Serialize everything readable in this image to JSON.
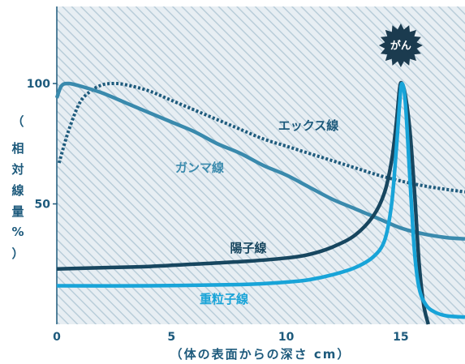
{
  "chart_data": {
    "type": "line",
    "title": "",
    "xlabel": "（体の表面からの深さ cm）",
    "ylabel_chars": [
      "（",
      "相",
      "対",
      "線",
      "量",
      "%",
      "）"
    ],
    "xlim": [
      0,
      17.8
    ],
    "ylim": [
      0,
      132
    ],
    "x_ticks": [
      0,
      5,
      10,
      15
    ],
    "x_tick_labels": [
      "0",
      "5",
      "10",
      "15"
    ],
    "y_ticks": [
      50,
      100
    ],
    "y_tick_labels": [
      "50",
      "100"
    ],
    "background": "hatched",
    "annotation": {
      "text": "がん",
      "x": 15,
      "color": "#1b3b4f"
    },
    "series": [
      {
        "name": "エックス線",
        "color": "#1d5a7c",
        "style": "dotted",
        "points": [
          [
            0.1,
            67
          ],
          [
            0.5,
            80
          ],
          [
            1.0,
            92
          ],
          [
            1.5,
            97
          ],
          [
            2.0,
            99.5
          ],
          [
            2.5,
            100
          ],
          [
            3.0,
            99.5
          ],
          [
            4.0,
            97
          ],
          [
            5.0,
            93
          ],
          [
            6.0,
            89
          ],
          [
            7.0,
            85
          ],
          [
            8.0,
            81
          ],
          [
            9.0,
            77
          ],
          [
            10.0,
            74
          ],
          [
            11.0,
            71
          ],
          [
            12.0,
            68
          ],
          [
            13.0,
            65
          ],
          [
            14.0,
            62
          ],
          [
            15.0,
            59.5
          ],
          [
            16.0,
            57.5
          ],
          [
            17.0,
            56
          ],
          [
            17.8,
            55
          ]
        ]
      },
      {
        "name": "ガンマ線",
        "color": "#3a8aad",
        "style": "solid",
        "points": [
          [
            0.0,
            94
          ],
          [
            0.2,
            99
          ],
          [
            0.5,
            100
          ],
          [
            1.0,
            99
          ],
          [
            2.0,
            96
          ],
          [
            3.0,
            92
          ],
          [
            4.0,
            88
          ],
          [
            5.0,
            84
          ],
          [
            6.0,
            80
          ],
          [
            7.0,
            75
          ],
          [
            8.0,
            71
          ],
          [
            9.0,
            66
          ],
          [
            10.0,
            62
          ],
          [
            11.0,
            57
          ],
          [
            12.0,
            52
          ],
          [
            13.0,
            48
          ],
          [
            14.0,
            44
          ],
          [
            15.0,
            40
          ],
          [
            16.0,
            37.5
          ],
          [
            17.0,
            36
          ],
          [
            17.8,
            35.5
          ]
        ]
      },
      {
        "name": "陽子線",
        "color": "#17465f",
        "style": "solid",
        "points": [
          [
            0.0,
            23
          ],
          [
            2.0,
            23.5
          ],
          [
            4.0,
            24
          ],
          [
            6.0,
            25
          ],
          [
            8.0,
            26
          ],
          [
            10.0,
            27.5
          ],
          [
            11.0,
            29
          ],
          [
            12.0,
            32
          ],
          [
            13.0,
            37
          ],
          [
            13.8,
            45
          ],
          [
            14.3,
            55
          ],
          [
            14.6,
            68
          ],
          [
            14.8,
            83
          ],
          [
            14.95,
            98
          ],
          [
            15.05,
            100
          ],
          [
            15.2,
            95
          ],
          [
            15.4,
            80
          ],
          [
            15.6,
            55
          ],
          [
            15.8,
            25
          ],
          [
            16.0,
            8
          ],
          [
            16.2,
            0
          ]
        ]
      },
      {
        "name": "重粒子線",
        "color": "#18a4d8",
        "style": "solid",
        "points": [
          [
            0.0,
            16
          ],
          [
            4.0,
            16
          ],
          [
            8.0,
            16.5
          ],
          [
            10.0,
            17.5
          ],
          [
            11.0,
            18.5
          ],
          [
            12.0,
            20.5
          ],
          [
            13.0,
            23.5
          ],
          [
            13.8,
            28
          ],
          [
            14.3,
            35
          ],
          [
            14.6,
            50
          ],
          [
            14.8,
            72
          ],
          [
            14.95,
            92
          ],
          [
            15.05,
            100
          ],
          [
            15.2,
            92
          ],
          [
            15.4,
            60
          ],
          [
            15.6,
            30
          ],
          [
            15.8,
            15
          ],
          [
            16.1,
            8
          ],
          [
            16.5,
            5
          ],
          [
            17.0,
            3.5
          ],
          [
            17.8,
            3
          ]
        ]
      }
    ]
  }
}
